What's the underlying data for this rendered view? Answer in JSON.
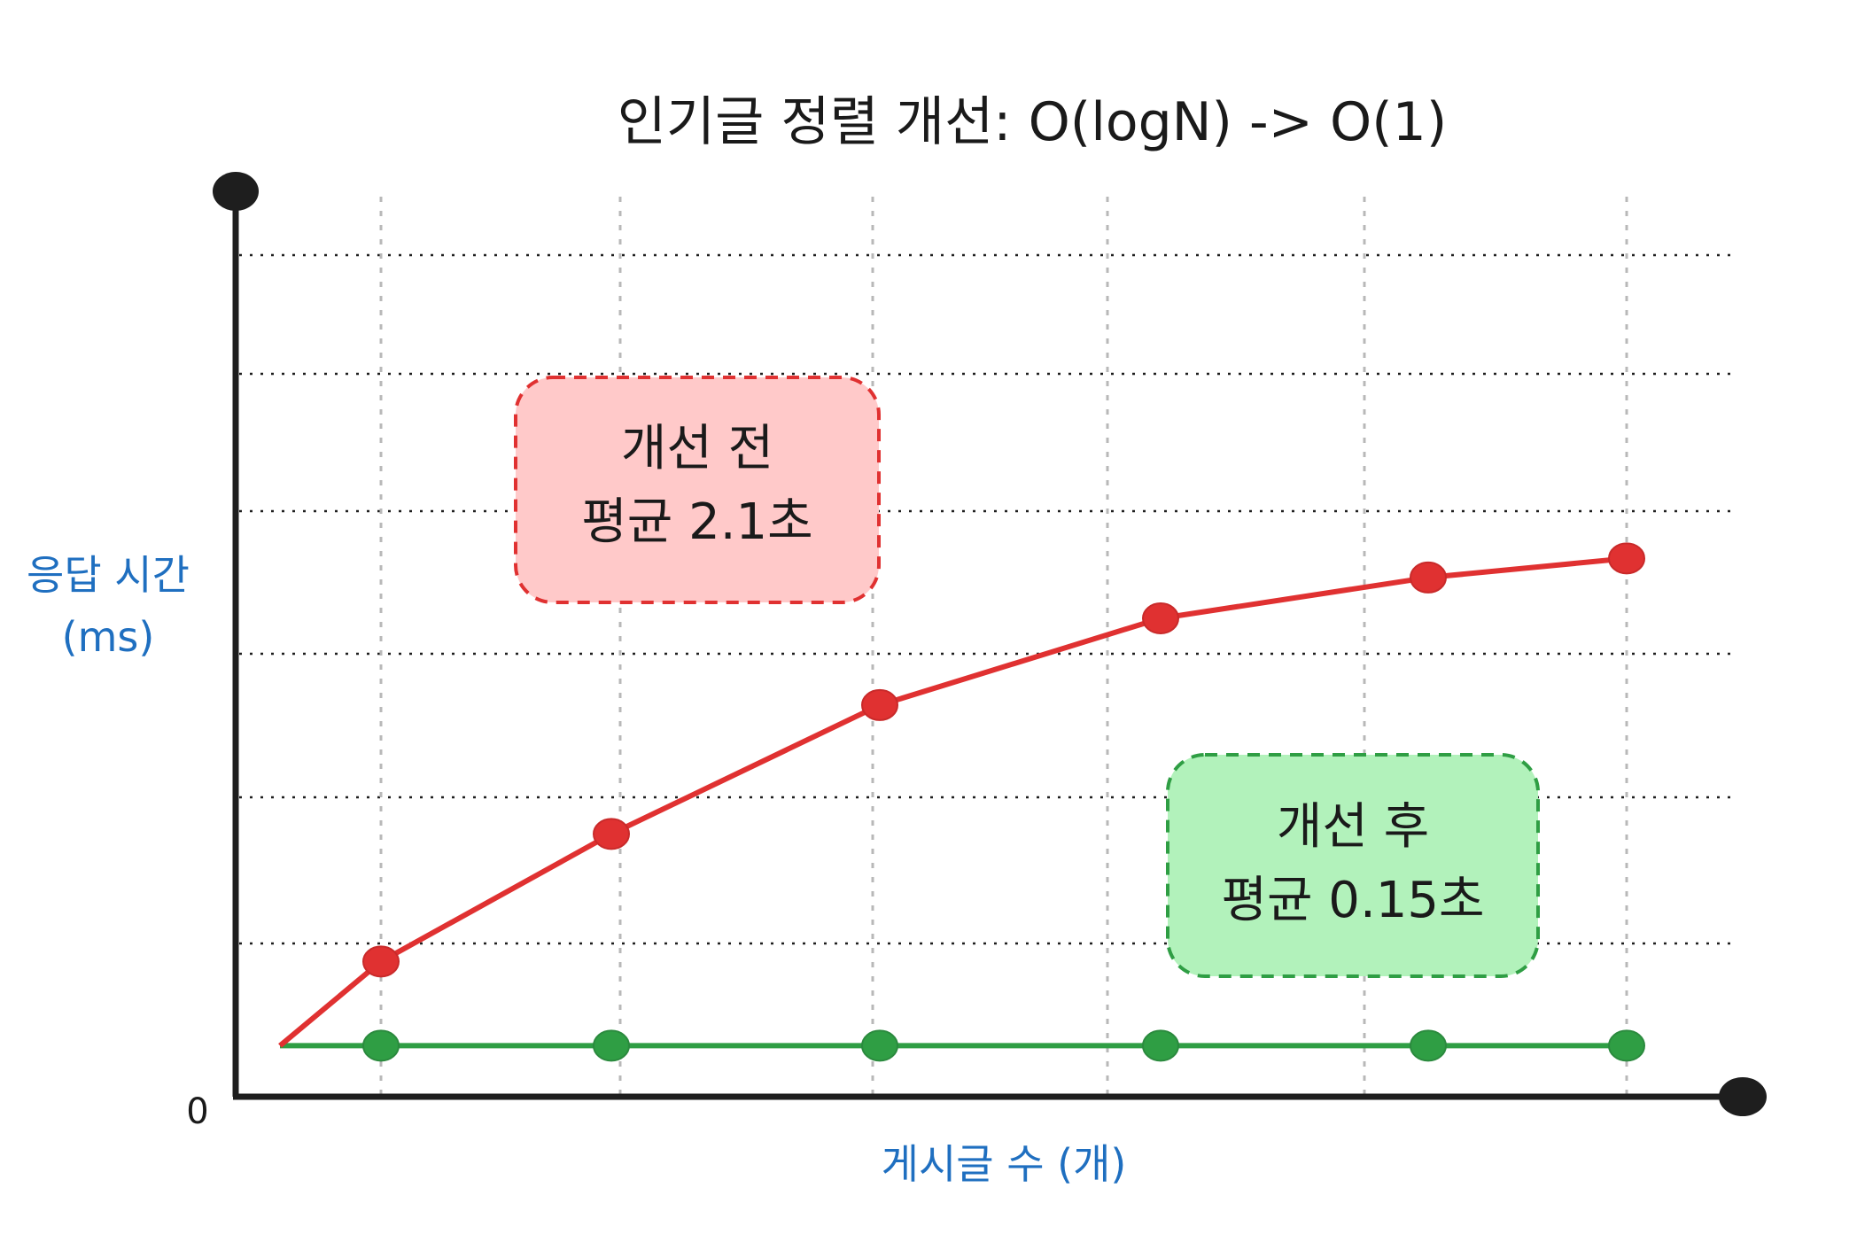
{
  "chart_data": {
    "type": "line",
    "title": "인기글 정렬 개선: O(logN) -> O(1)",
    "xlabel": "게시글 수 (개)",
    "ylabel": [
      "응답 시간",
      "(ms)"
    ],
    "origin_label": "0",
    "grid": true,
    "x": [
      0,
      1,
      2,
      3,
      4,
      5,
      6
    ],
    "series": [
      {
        "key": "before",
        "color": "#e03131",
        "values": [
          0.4,
          1.06,
          2.06,
          3.07,
          3.75,
          4.07,
          4.22
        ]
      },
      {
        "key": "after",
        "color": "#2f9e44",
        "values": [
          0.4,
          0.4,
          0.4,
          0.4,
          0.4,
          0.4,
          0.4
        ]
      }
    ],
    "annotations": {
      "before": {
        "line1": "개선 전",
        "line2": "평균 2.1초",
        "fill": "#ffc9c9",
        "border": "#e03131"
      },
      "after": {
        "line1": "개선 후",
        "line2": "평균 0.15초",
        "fill": "#b2f2bb",
        "border": "#2f9e44"
      }
    }
  }
}
